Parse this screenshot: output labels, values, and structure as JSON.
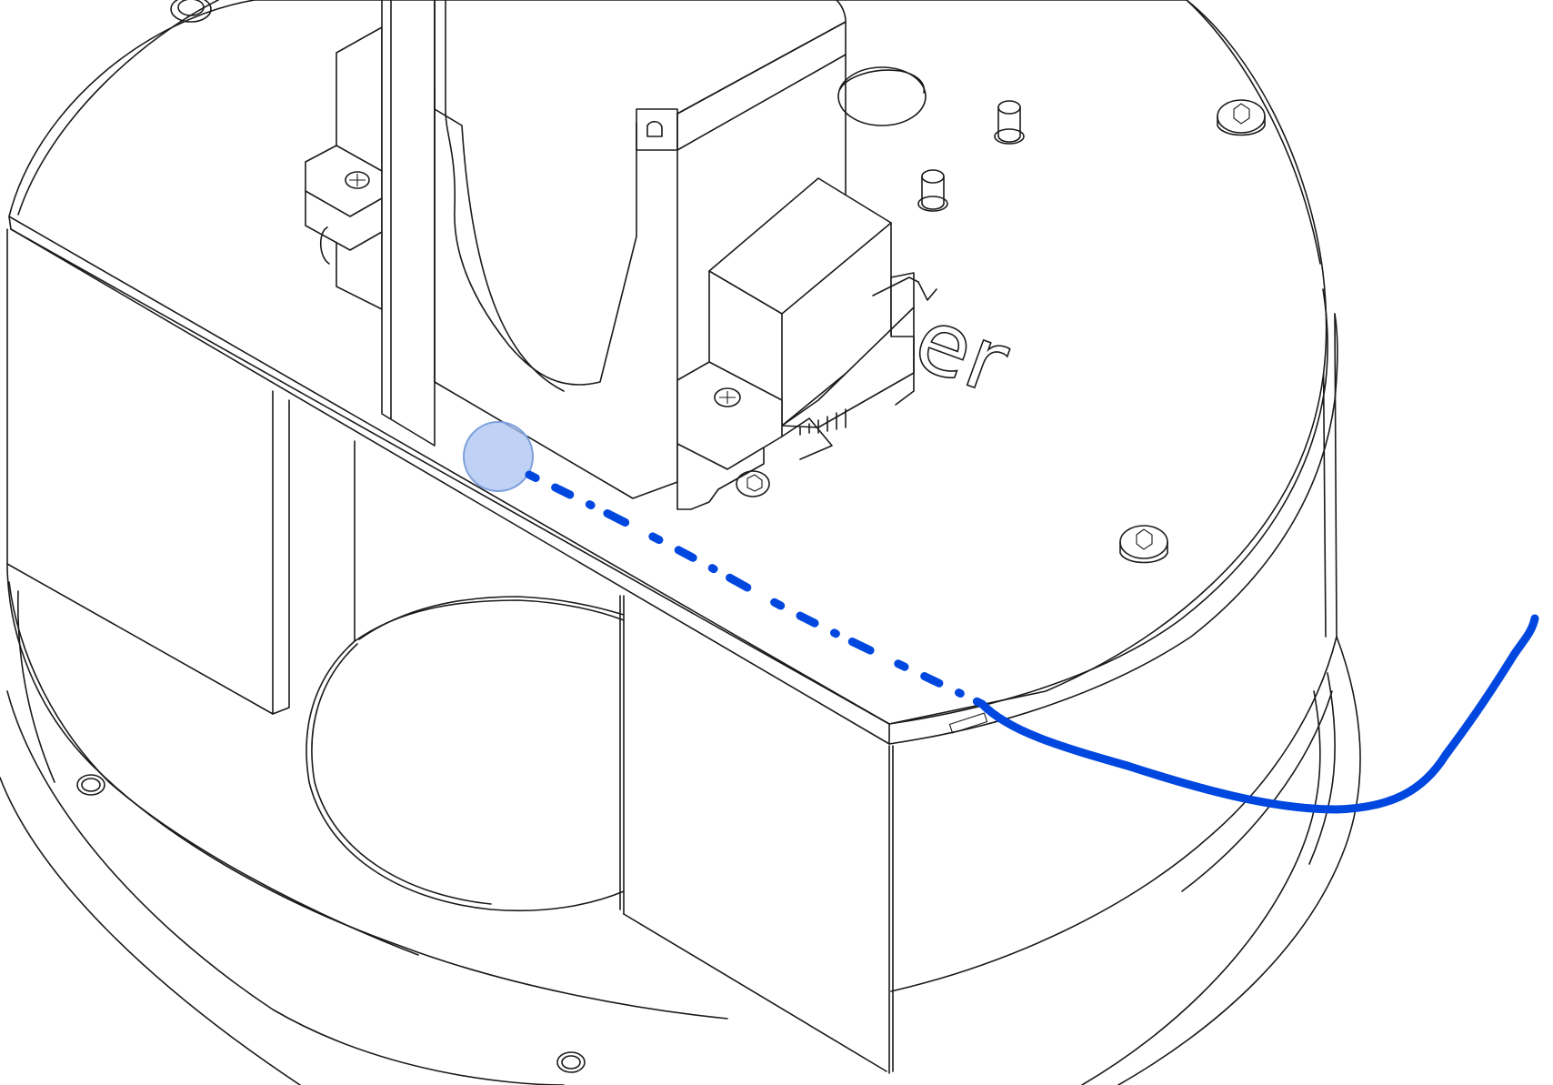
{
  "figure": {
    "engraved_text": "er",
    "colors": {
      "line_art": "#1a1a1a",
      "background": "#ffffff",
      "annotation_stroke": "#0047e0",
      "annotation_marker_fill": "#a9c3f2",
      "annotation_marker_stroke": "#7d9fdc"
    },
    "annotations": [
      {
        "kind": "touch-marker",
        "style": "translucent-circle"
      },
      {
        "kind": "path",
        "style": "dash-dot"
      },
      {
        "kind": "path",
        "style": "solid-curve"
      }
    ]
  }
}
